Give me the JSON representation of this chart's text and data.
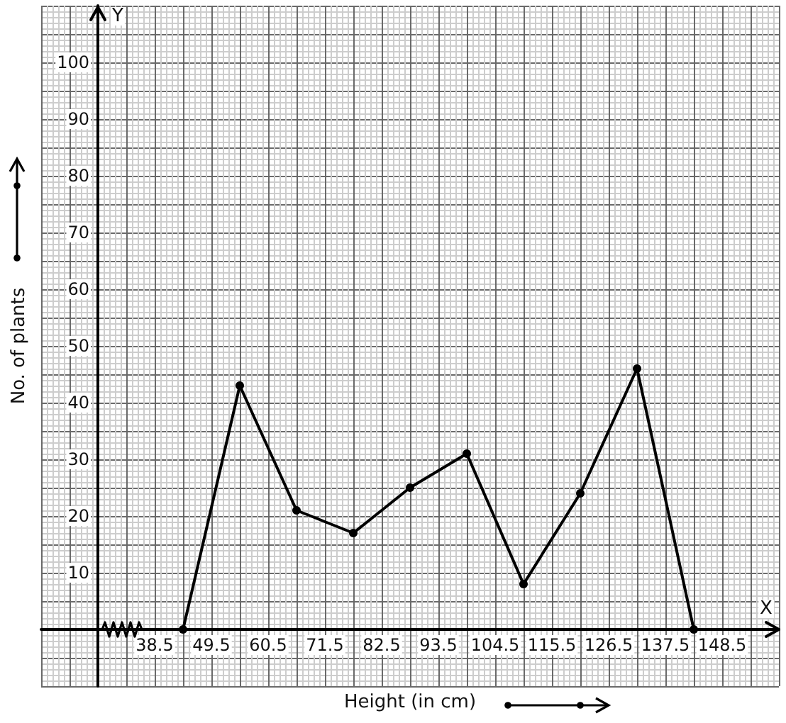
{
  "chart_data": {
    "type": "line",
    "xlabel": "Height (in cm)",
    "ylabel": "No. of plants",
    "x": [
      44,
      55,
      66,
      77,
      88,
      99,
      110,
      121,
      132,
      143
    ],
    "values": [
      0,
      43,
      21,
      17,
      25,
      31,
      8,
      24,
      46,
      0
    ],
    "color": "#000000",
    "xlim": [
      16.5,
      159.5
    ],
    "ylim": [
      -10,
      110
    ],
    "xticks": [
      38.5,
      49.5,
      60.5,
      71.5,
      82.5,
      93.5,
      104.5,
      115.5,
      126.5,
      137.5,
      148.5
    ],
    "yticks": [
      10,
      20,
      30,
      40,
      50,
      60,
      70,
      80,
      90,
      100
    ],
    "grid": true,
    "marker": "circle",
    "annotations": [
      "X",
      "Y"
    ]
  }
}
